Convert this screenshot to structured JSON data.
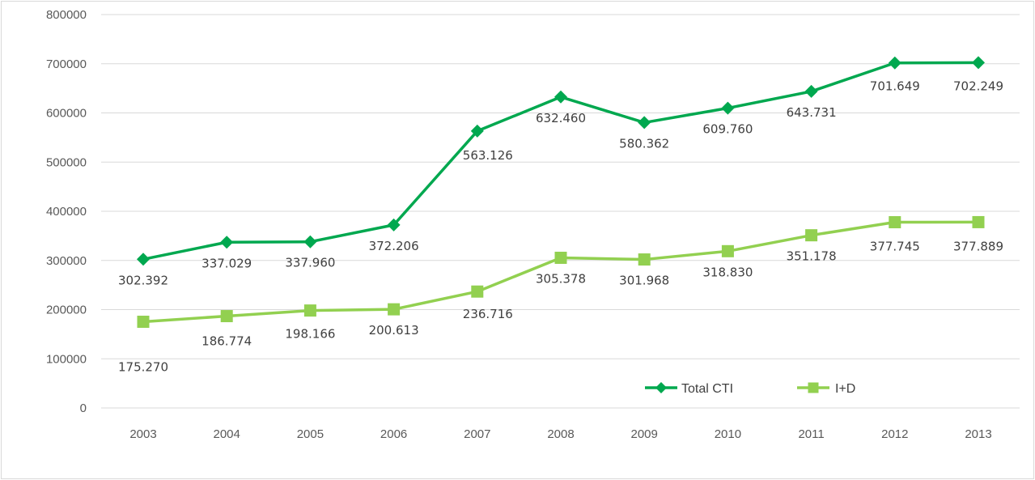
{
  "chart_data": {
    "type": "line",
    "categories": [
      "2003",
      "2004",
      "2005",
      "2006",
      "2007",
      "2008",
      "2009",
      "2010",
      "2011",
      "2012",
      "2013"
    ],
    "ylim": [
      0,
      800000
    ],
    "yticks": [
      0,
      100000,
      200000,
      300000,
      400000,
      500000,
      600000,
      700000,
      800000
    ],
    "ytick_labels": [
      "0",
      "100000",
      "200000",
      "300000",
      "400000",
      "500000",
      "600000",
      "700000",
      "800000"
    ],
    "grid": true,
    "legend_position": "bottom-right",
    "series": [
      {
        "name": "Total CTI",
        "color": "#00a84f",
        "marker": "diamond",
        "values": [
          302392,
          337029,
          337960,
          372206,
          563126,
          632460,
          580362,
          609760,
          643731,
          701649,
          702249
        ],
        "labels": [
          "302.392",
          "337.029",
          "337.960",
          "372.206",
          "563.126",
          "632.460",
          "580.362",
          "609.760",
          "643.731",
          "701.649",
          "702.249"
        ]
      },
      {
        "name": "I+D",
        "color": "#92d050",
        "marker": "square",
        "values": [
          175270,
          186774,
          198166,
          200613,
          236716,
          305378,
          301968,
          318830,
          351178,
          377745,
          377889
        ],
        "labels": [
          "175.270",
          "186.774",
          "198.166",
          "200.613",
          "236.716",
          "305.378",
          "301.968",
          "318.830",
          "351.178",
          "377.745",
          "377.889"
        ]
      }
    ]
  }
}
